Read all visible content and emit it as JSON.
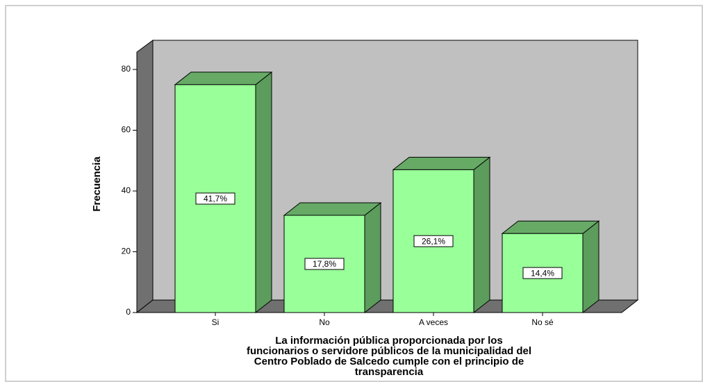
{
  "chart_data": {
    "type": "bar3d",
    "y_label": "Frecuencia",
    "x_label": [
      "La información pública proporcionada por los",
      "funcionarios o servidore públicos de la municipalidad del",
      "Centro Poblado de Salcedo cumple con el principio de",
      "transparencia"
    ],
    "categories": [
      "Si",
      "No",
      "A veces",
      "No sé"
    ],
    "values": [
      75,
      32,
      47,
      26
    ],
    "percentages": [
      41.7,
      17.8,
      26.1,
      14.4
    ],
    "percentage_labels": [
      "41,7%",
      "17,8%",
      "26,1%",
      "14,4%"
    ],
    "color": "#99ff99",
    "ylim": [
      0,
      80
    ],
    "yticks": [
      0,
      20,
      40,
      60,
      80
    ]
  }
}
